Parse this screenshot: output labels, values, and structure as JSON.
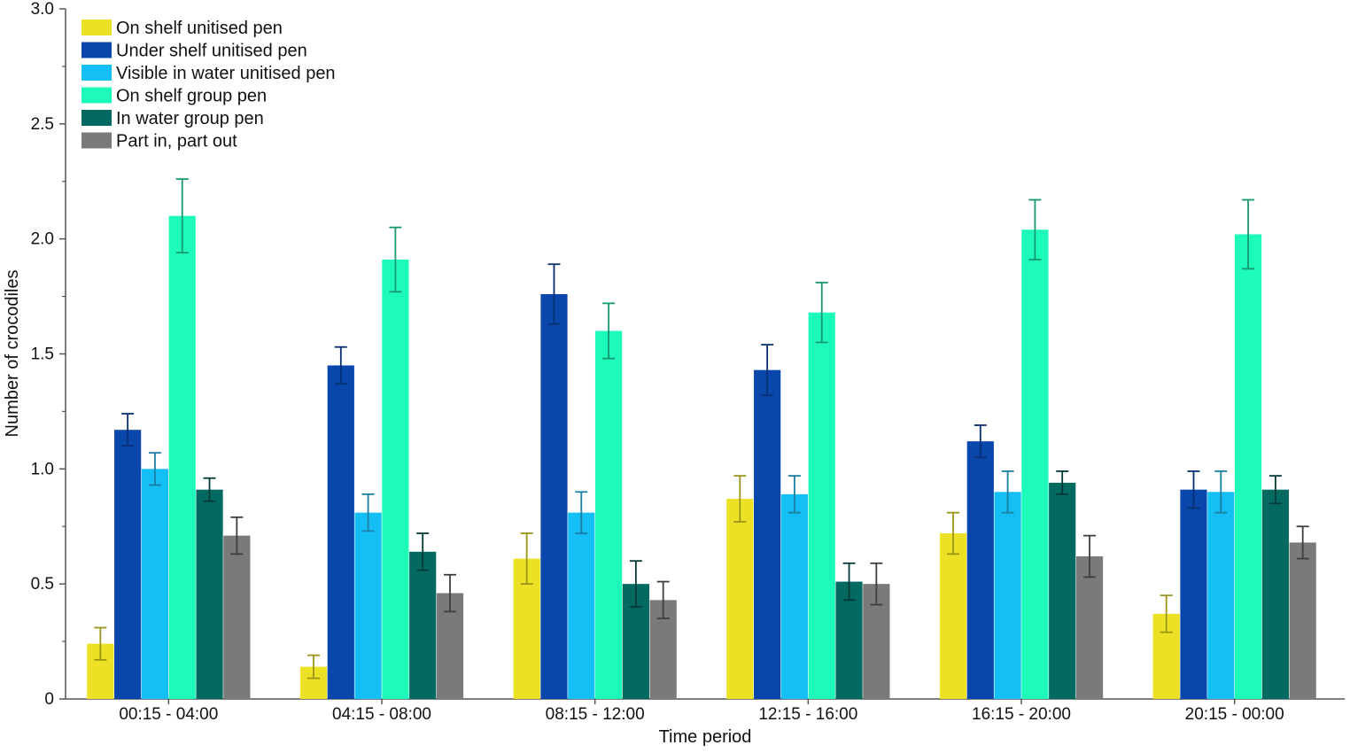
{
  "chart_data": {
    "type": "bar",
    "title": "",
    "xlabel": "Time period",
    "ylabel": "Number of crocodiles",
    "ylim": [
      0,
      3.0
    ],
    "yticks": [
      "0",
      "0.5",
      "1.0",
      "1.5",
      "2.0",
      "2.5",
      "3.0"
    ],
    "ytick_values": [
      0,
      0.5,
      1.0,
      1.5,
      2.0,
      2.5,
      3.0
    ],
    "categories": [
      "00:15 - 04:00",
      "04:15 - 08:00",
      "08:15 - 12:00",
      "12:15 - 16:00",
      "16:15 - 20:00",
      "20:15 - 00:00"
    ],
    "legend_position": "top-left",
    "grid": false,
    "series": [
      {
        "name": "On shelf unitised pen",
        "color": "#ece124",
        "error_color": "#9a9418",
        "values": [
          0.24,
          0.14,
          0.61,
          0.87,
          0.72,
          0.37
        ],
        "errors": [
          0.07,
          0.05,
          0.11,
          0.1,
          0.09,
          0.08
        ]
      },
      {
        "name": "Under shelf unitised pen",
        "color": "#0a47ad",
        "error_color": "#082f72",
        "values": [
          1.17,
          1.45,
          1.76,
          1.43,
          1.12,
          0.91
        ],
        "errors": [
          0.07,
          0.08,
          0.13,
          0.11,
          0.07,
          0.08
        ]
      },
      {
        "name": "Visible in water unitised pen",
        "color": "#14bff5",
        "error_color": "#1b7fa3",
        "values": [
          1.0,
          0.81,
          0.81,
          0.89,
          0.9,
          0.9
        ],
        "errors": [
          0.07,
          0.08,
          0.09,
          0.08,
          0.09,
          0.09
        ]
      },
      {
        "name": "On shelf group pen",
        "color": "#1cfbb9",
        "error_color": "#17986e",
        "values": [
          2.1,
          1.91,
          1.6,
          1.68,
          2.04,
          2.02
        ],
        "errors": [
          0.16,
          0.14,
          0.12,
          0.13,
          0.13,
          0.15
        ]
      },
      {
        "name": "In water group pen",
        "color": "#036a62",
        "error_color": "#023b36",
        "values": [
          0.91,
          0.64,
          0.5,
          0.51,
          0.94,
          0.91
        ],
        "errors": [
          0.05,
          0.08,
          0.1,
          0.08,
          0.05,
          0.06
        ]
      },
      {
        "name": "Part in, part out",
        "color": "#7a7a7a",
        "error_color": "#3e3e3e",
        "values": [
          0.71,
          0.46,
          0.43,
          0.5,
          0.62,
          0.68
        ],
        "errors": [
          0.08,
          0.08,
          0.08,
          0.09,
          0.09,
          0.07
        ]
      }
    ]
  }
}
